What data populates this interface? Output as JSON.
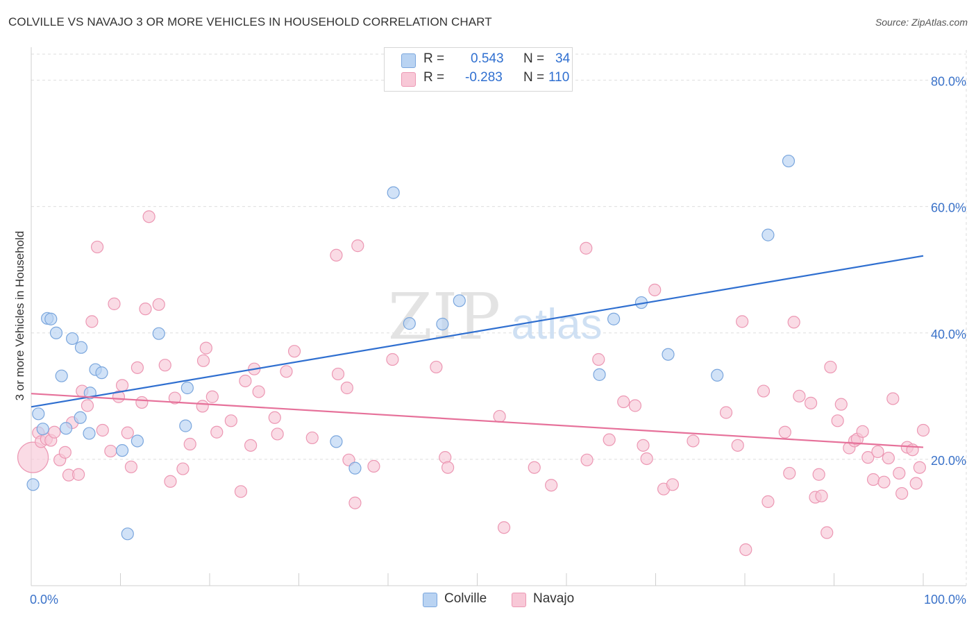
{
  "title": "COLVILLE VS NAVAJO 3 OR MORE VEHICLES IN HOUSEHOLD CORRELATION CHART",
  "source": "Source: ZipAtlas.com",
  "watermark": {
    "zip": "ZIP",
    "atlas": "atlas"
  },
  "legend": {
    "colville": {
      "r_label": "R =",
      "r_value": "0.543",
      "n_label": "N =",
      "n_value": "34"
    },
    "navajo": {
      "r_label": "R =",
      "r_value": "-0.283",
      "n_label": "N =",
      "n_value": "110"
    }
  },
  "colors": {
    "colville_fill": "#b9d3f2",
    "colville_stroke": "#7aa6dd",
    "colville_line": "#2f6fd0",
    "navajo_fill": "#f8c8d7",
    "navajo_stroke": "#ec97b3",
    "navajo_line": "#e6719a",
    "grid": "#dedede",
    "axis_label": "#3a72c9"
  },
  "chart_data": {
    "type": "scatter",
    "title": "COLVILLE VS NAVAJO 3 OR MORE VEHICLES IN HOUSEHOLD CORRELATION CHART",
    "xlabel": "",
    "ylabel": "3 or more Vehicles in Household",
    "xlim": [
      0,
      100
    ],
    "ylim": [
      0,
      85
    ],
    "x_tick_labels": [
      {
        "value": 0,
        "label": "0.0%"
      },
      {
        "value": 100,
        "label": "100.0%"
      }
    ],
    "y_tick_labels": [
      {
        "value": 20,
        "label": "20.0%"
      },
      {
        "value": 40,
        "label": "40.0%"
      },
      {
        "value": 60,
        "label": "60.0%"
      },
      {
        "value": 80,
        "label": "80.0%"
      }
    ],
    "x_minor_ticks": [
      10,
      20,
      30,
      40,
      50,
      60,
      70,
      80,
      90,
      100
    ],
    "series": [
      {
        "name": "Colville",
        "r": 0.543,
        "n": 34,
        "trend": {
          "x": [
            0,
            100
          ],
          "y": [
            28.3,
            52.2
          ]
        },
        "points": [
          {
            "x": 0.2,
            "y": 16.0
          },
          {
            "x": 0.8,
            "y": 27.2
          },
          {
            "x": 1.3,
            "y": 24.8
          },
          {
            "x": 1.8,
            "y": 42.3
          },
          {
            "x": 2.2,
            "y": 42.2
          },
          {
            "x": 2.8,
            "y": 40.0
          },
          {
            "x": 3.4,
            "y": 33.2
          },
          {
            "x": 3.9,
            "y": 24.9
          },
          {
            "x": 4.6,
            "y": 39.1
          },
          {
            "x": 5.6,
            "y": 37.7
          },
          {
            "x": 5.5,
            "y": 26.6
          },
          {
            "x": 6.5,
            "y": 24.1
          },
          {
            "x": 6.6,
            "y": 30.5
          },
          {
            "x": 7.2,
            "y": 34.2
          },
          {
            "x": 7.9,
            "y": 33.7
          },
          {
            "x": 10.2,
            "y": 21.4
          },
          {
            "x": 10.8,
            "y": 8.2
          },
          {
            "x": 11.9,
            "y": 22.9
          },
          {
            "x": 14.3,
            "y": 39.9
          },
          {
            "x": 17.3,
            "y": 25.3
          },
          {
            "x": 17.5,
            "y": 31.3
          },
          {
            "x": 34.2,
            "y": 22.8
          },
          {
            "x": 36.3,
            "y": 18.6
          },
          {
            "x": 40.6,
            "y": 62.2
          },
          {
            "x": 42.4,
            "y": 41.5
          },
          {
            "x": 46.1,
            "y": 41.4
          },
          {
            "x": 48.0,
            "y": 45.1
          },
          {
            "x": 63.7,
            "y": 33.4
          },
          {
            "x": 65.3,
            "y": 42.2
          },
          {
            "x": 68.4,
            "y": 44.8
          },
          {
            "x": 71.4,
            "y": 36.6
          },
          {
            "x": 76.9,
            "y": 33.3
          },
          {
            "x": 82.6,
            "y": 55.5
          },
          {
            "x": 84.9,
            "y": 67.2
          }
        ]
      },
      {
        "name": "Navajo",
        "r": -0.283,
        "n": 110,
        "trend": {
          "x": [
            0,
            100
          ],
          "y": [
            30.4,
            21.9
          ]
        },
        "points": [
          {
            "x": 0.2,
            "y": 20.3
          },
          {
            "x": 0.8,
            "y": 24.2
          },
          {
            "x": 1.1,
            "y": 22.8
          },
          {
            "x": 1.7,
            "y": 23.2
          },
          {
            "x": 2.2,
            "y": 23.0
          },
          {
            "x": 2.6,
            "y": 24.3
          },
          {
            "x": 3.2,
            "y": 19.9
          },
          {
            "x": 3.8,
            "y": 21.1
          },
          {
            "x": 4.2,
            "y": 17.5
          },
          {
            "x": 4.6,
            "y": 25.8
          },
          {
            "x": 5.3,
            "y": 17.6
          },
          {
            "x": 5.7,
            "y": 30.8
          },
          {
            "x": 6.3,
            "y": 28.5
          },
          {
            "x": 6.8,
            "y": 41.8
          },
          {
            "x": 7.4,
            "y": 53.6
          },
          {
            "x": 8.0,
            "y": 24.6
          },
          {
            "x": 8.9,
            "y": 21.3
          },
          {
            "x": 9.3,
            "y": 44.6
          },
          {
            "x": 9.8,
            "y": 29.9
          },
          {
            "x": 10.2,
            "y": 31.7
          },
          {
            "x": 10.8,
            "y": 24.2
          },
          {
            "x": 11.2,
            "y": 18.8
          },
          {
            "x": 11.9,
            "y": 34.5
          },
          {
            "x": 12.4,
            "y": 29.0
          },
          {
            "x": 12.8,
            "y": 43.8
          },
          {
            "x": 13.2,
            "y": 58.4
          },
          {
            "x": 14.3,
            "y": 44.5
          },
          {
            "x": 15.0,
            "y": 34.9
          },
          {
            "x": 15.6,
            "y": 16.5
          },
          {
            "x": 16.1,
            "y": 29.7
          },
          {
            "x": 17.0,
            "y": 18.5
          },
          {
            "x": 17.8,
            "y": 22.4
          },
          {
            "x": 19.2,
            "y": 28.4
          },
          {
            "x": 19.3,
            "y": 35.6
          },
          {
            "x": 19.6,
            "y": 37.6
          },
          {
            "x": 20.3,
            "y": 29.9
          },
          {
            "x": 20.8,
            "y": 24.3
          },
          {
            "x": 22.4,
            "y": 26.1
          },
          {
            "x": 23.5,
            "y": 14.9
          },
          {
            "x": 24.0,
            "y": 32.4
          },
          {
            "x": 24.6,
            "y": 22.2
          },
          {
            "x": 25.0,
            "y": 34.3
          },
          {
            "x": 25.5,
            "y": 30.7
          },
          {
            "x": 27.3,
            "y": 26.6
          },
          {
            "x": 27.6,
            "y": 24.0
          },
          {
            "x": 28.6,
            "y": 33.9
          },
          {
            "x": 29.5,
            "y": 37.1
          },
          {
            "x": 31.5,
            "y": 23.4
          },
          {
            "x": 34.2,
            "y": 52.3
          },
          {
            "x": 34.4,
            "y": 33.5
          },
          {
            "x": 35.4,
            "y": 31.3
          },
          {
            "x": 35.6,
            "y": 19.9
          },
          {
            "x": 36.3,
            "y": 13.1
          },
          {
            "x": 36.6,
            "y": 53.8
          },
          {
            "x": 38.4,
            "y": 18.9
          },
          {
            "x": 40.5,
            "y": 35.8
          },
          {
            "x": 45.4,
            "y": 34.6
          },
          {
            "x": 46.4,
            "y": 20.3
          },
          {
            "x": 46.7,
            "y": 18.7
          },
          {
            "x": 52.5,
            "y": 26.8
          },
          {
            "x": 53.0,
            "y": 9.2
          },
          {
            "x": 56.4,
            "y": 18.7
          },
          {
            "x": 58.3,
            "y": 15.9
          },
          {
            "x": 62.2,
            "y": 53.4
          },
          {
            "x": 62.3,
            "y": 19.9
          },
          {
            "x": 63.6,
            "y": 35.8
          },
          {
            "x": 64.8,
            "y": 23.1
          },
          {
            "x": 66.4,
            "y": 29.1
          },
          {
            "x": 67.7,
            "y": 28.5
          },
          {
            "x": 68.6,
            "y": 22.2
          },
          {
            "x": 69.0,
            "y": 20.1
          },
          {
            "x": 69.9,
            "y": 46.8
          },
          {
            "x": 70.9,
            "y": 15.3
          },
          {
            "x": 71.9,
            "y": 16.0
          },
          {
            "x": 74.2,
            "y": 22.9
          },
          {
            "x": 77.9,
            "y": 27.4
          },
          {
            "x": 79.2,
            "y": 22.2
          },
          {
            "x": 79.7,
            "y": 41.8
          },
          {
            "x": 80.1,
            "y": 5.7
          },
          {
            "x": 82.1,
            "y": 30.8
          },
          {
            "x": 82.6,
            "y": 13.3
          },
          {
            "x": 84.5,
            "y": 24.3
          },
          {
            "x": 85.0,
            "y": 17.8
          },
          {
            "x": 85.5,
            "y": 41.7
          },
          {
            "x": 86.1,
            "y": 30.0
          },
          {
            "x": 87.4,
            "y": 28.9
          },
          {
            "x": 87.9,
            "y": 14.0
          },
          {
            "x": 88.3,
            "y": 17.6
          },
          {
            "x": 88.6,
            "y": 14.2
          },
          {
            "x": 89.2,
            "y": 8.4
          },
          {
            "x": 89.6,
            "y": 34.6
          },
          {
            "x": 90.4,
            "y": 26.1
          },
          {
            "x": 90.8,
            "y": 28.7
          },
          {
            "x": 91.7,
            "y": 21.8
          },
          {
            "x": 92.3,
            "y": 22.9
          },
          {
            "x": 92.6,
            "y": 23.2
          },
          {
            "x": 93.2,
            "y": 24.4
          },
          {
            "x": 93.8,
            "y": 20.3
          },
          {
            "x": 94.4,
            "y": 16.8
          },
          {
            "x": 94.9,
            "y": 21.2
          },
          {
            "x": 95.6,
            "y": 16.4
          },
          {
            "x": 96.1,
            "y": 20.2
          },
          {
            "x": 96.6,
            "y": 29.6
          },
          {
            "x": 97.3,
            "y": 17.8
          },
          {
            "x": 97.6,
            "y": 14.6
          },
          {
            "x": 98.2,
            "y": 21.9
          },
          {
            "x": 98.8,
            "y": 21.5
          },
          {
            "x": 99.2,
            "y": 16.2
          },
          {
            "x": 99.6,
            "y": 18.7
          },
          {
            "x": 100.0,
            "y": 24.6
          }
        ]
      }
    ]
  }
}
